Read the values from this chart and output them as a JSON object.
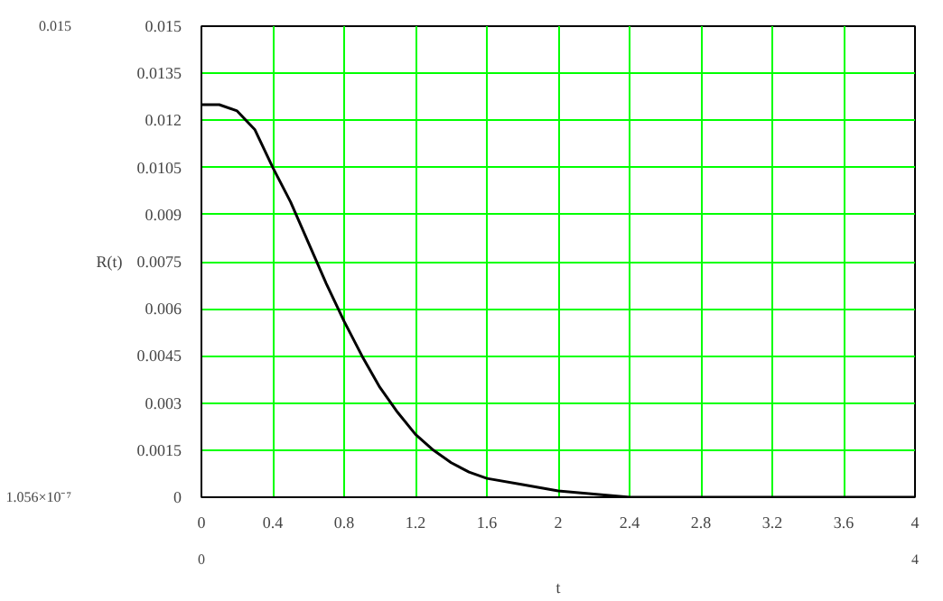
{
  "chart_data": {
    "type": "line",
    "xlabel": "t",
    "ylabel": "R(t)",
    "x": [
      0,
      0.1,
      0.2,
      0.3,
      0.4,
      0.5,
      0.6,
      0.7,
      0.8,
      0.9,
      1.0,
      1.1,
      1.2,
      1.3,
      1.4,
      1.5,
      1.6,
      1.8,
      2.0,
      2.2,
      2.4,
      2.8,
      3.2,
      3.6,
      4.0
    ],
    "series": [
      {
        "color": "#000000",
        "values": [
          0.0125,
          0.0125,
          0.0123,
          0.0117,
          0.0105,
          0.0094,
          0.0081,
          0.0068,
          0.0056,
          0.0045,
          0.0035,
          0.0027,
          0.002,
          0.0015,
          0.0011,
          0.0008,
          0.0006,
          0.0004,
          0.0002,
          0.0001,
          0,
          0,
          0,
          0,
          0
        ]
      }
    ],
    "xlim": [
      0,
      4
    ],
    "ylim": [
      0,
      0.015
    ],
    "xticks": [
      0,
      0.4,
      0.8,
      1.2,
      1.6,
      2,
      2.4,
      2.8,
      3.2,
      3.6,
      4
    ],
    "yticks": [
      0,
      0.0015,
      0.003,
      0.0045,
      0.006,
      0.0075,
      0.009,
      0.0105,
      0.012,
      0.0135,
      0.015
    ],
    "grid": true,
    "line_style": "solid",
    "annotations": [
      "0.015",
      "1.056×10⁻⁷",
      "0",
      "4"
    ]
  }
}
